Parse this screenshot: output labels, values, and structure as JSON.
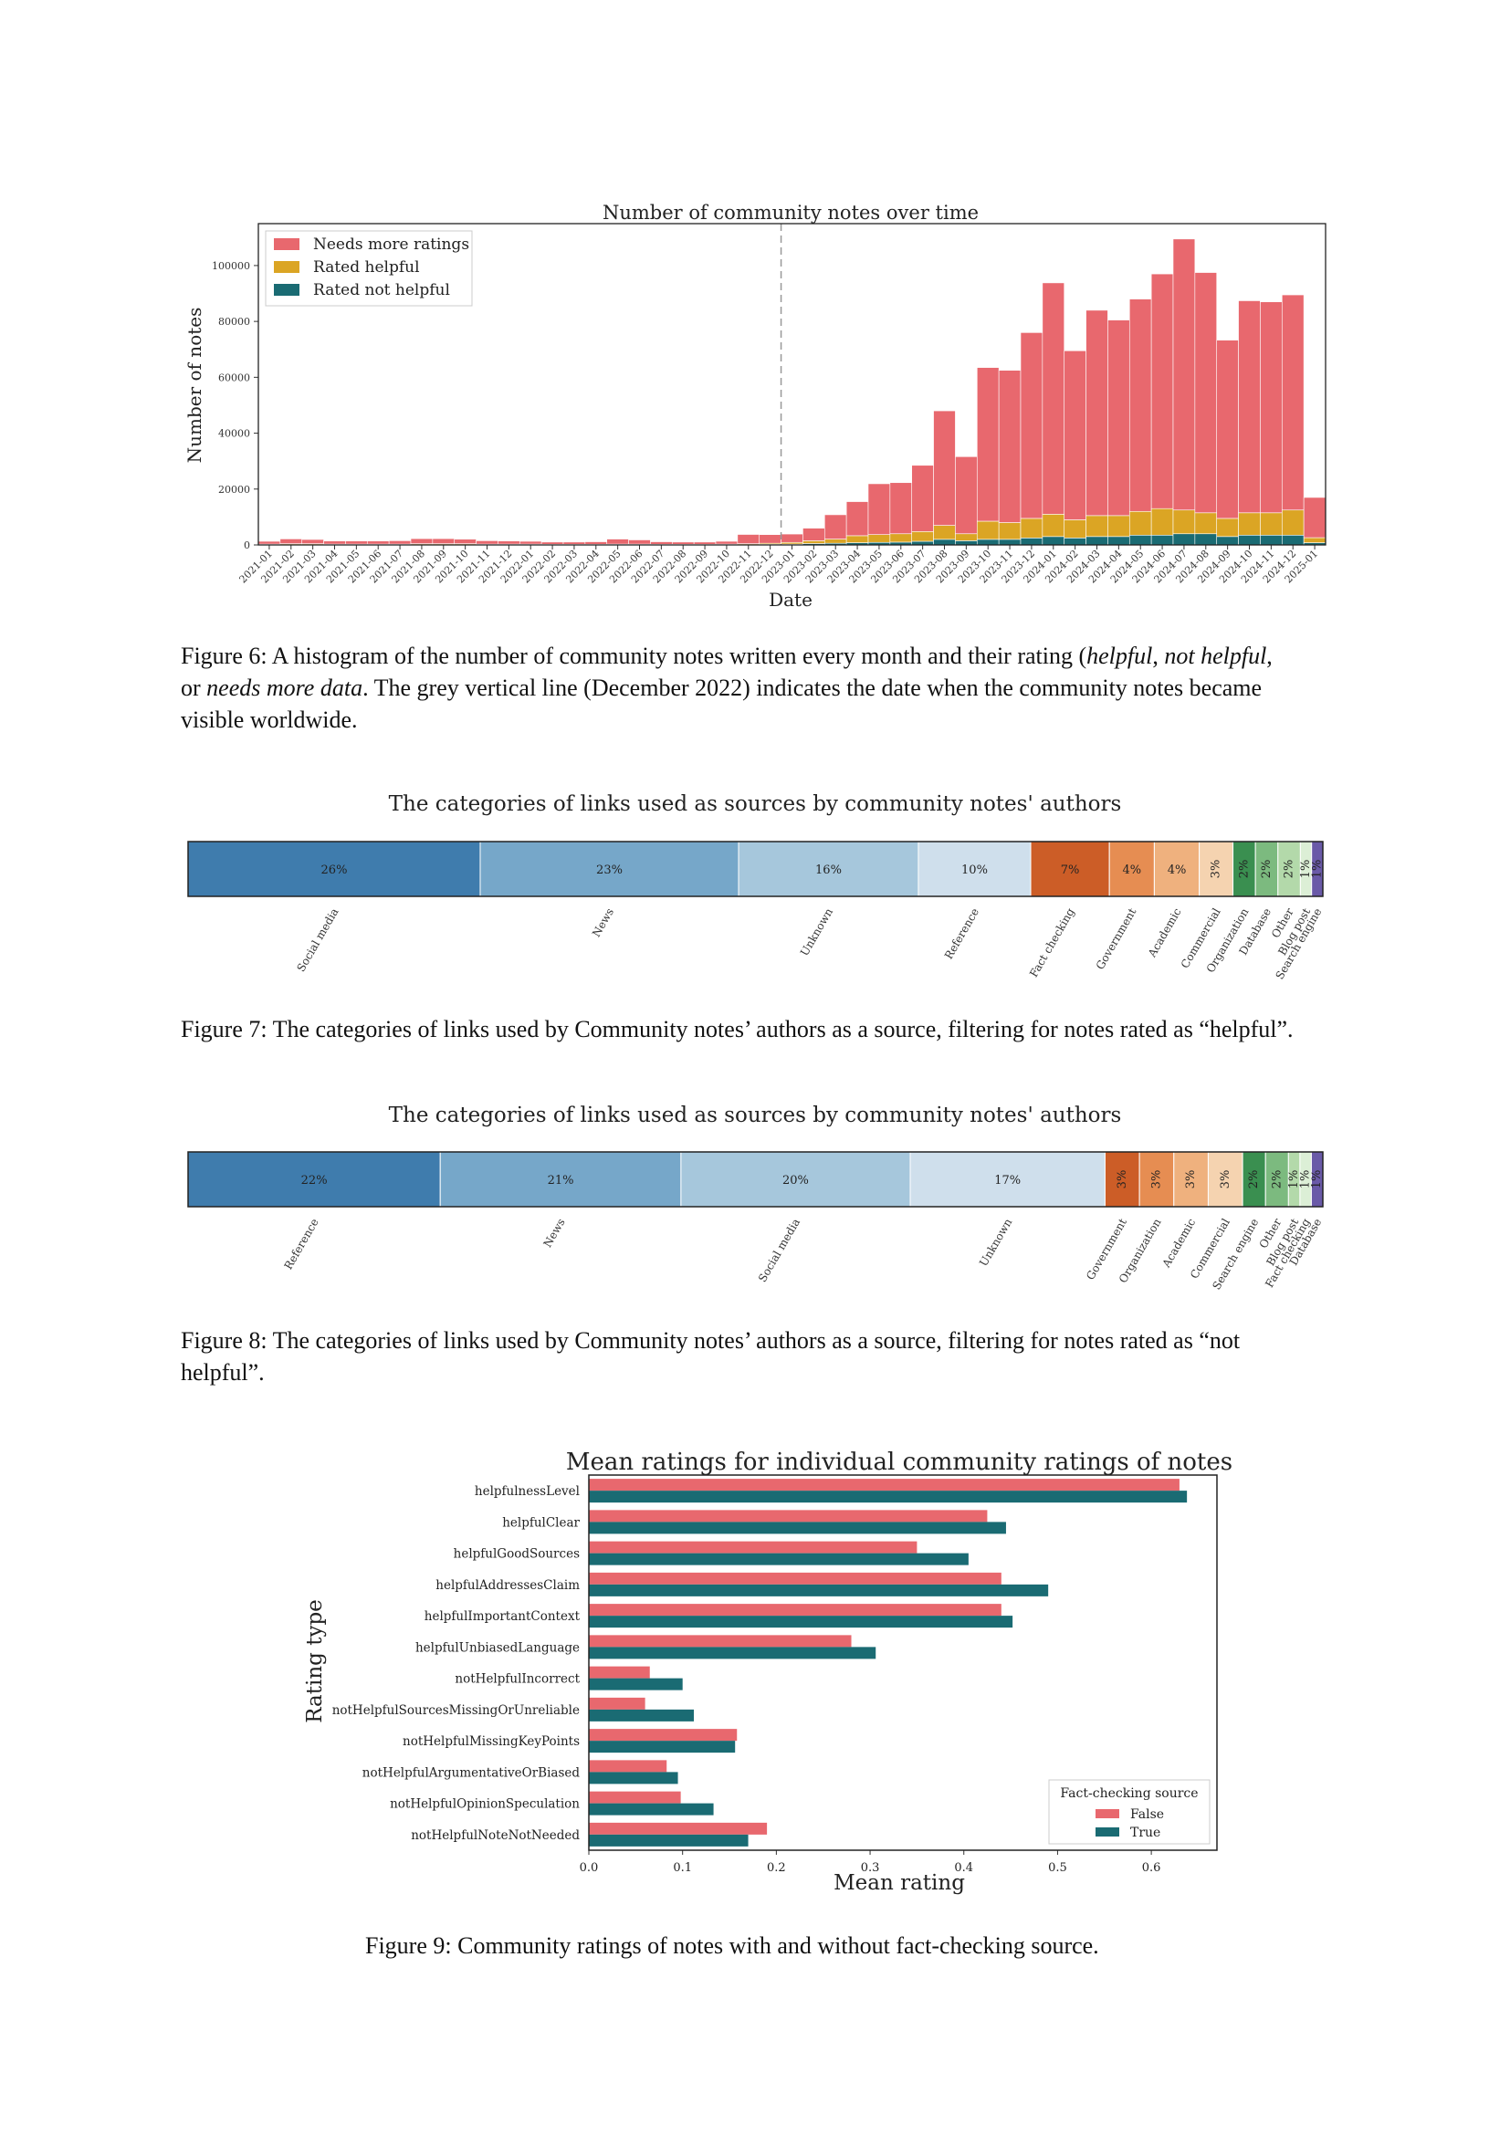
{
  "colors": {
    "needs_more": "#e8686e",
    "helpful": "#dba524",
    "not_helpful": "#1a6b73",
    "cat_palette": [
      "#3f7cad",
      "#76a7c9",
      "#a6c7dc",
      "#cfdfec",
      "#cc5d27",
      "#e68d52",
      "#efb17e",
      "#f5d3b0",
      "#3a8f50",
      "#7cba7f",
      "#b3d9aa",
      "#dcefd6",
      "#6a5aa8"
    ]
  },
  "figure6": {
    "chart_data": {
      "type": "bar",
      "stacked": true,
      "title": "Number of community notes over time",
      "xlabel": "Date",
      "ylabel": "Number of notes",
      "ylim": [
        0,
        115000
      ],
      "yticks": [
        0,
        20000,
        40000,
        60000,
        80000,
        100000
      ],
      "legend_position": "top-left",
      "vline_category": "2022-12",
      "categories": [
        "2021-01",
        "2021-02",
        "2021-03",
        "2021-04",
        "2021-05",
        "2021-06",
        "2021-07",
        "2021-08",
        "2021-09",
        "2021-10",
        "2021-11",
        "2021-12",
        "2022-01",
        "2022-02",
        "2022-03",
        "2022-04",
        "2022-05",
        "2022-06",
        "2022-07",
        "2022-08",
        "2022-09",
        "2022-10",
        "2022-11",
        "2022-12",
        "2023-01",
        "2023-02",
        "2023-03",
        "2023-04",
        "2023-05",
        "2023-06",
        "2023-07",
        "2023-08",
        "2023-09",
        "2023-10",
        "2023-11",
        "2023-12",
        "2024-01",
        "2024-02",
        "2024-03",
        "2024-04",
        "2024-05",
        "2024-06",
        "2024-07",
        "2024-08",
        "2024-09",
        "2024-10",
        "2024-11",
        "2024-12",
        "2025-01"
      ],
      "series": [
        {
          "name": "Rated not helpful",
          "values": [
            100,
            150,
            150,
            100,
            100,
            100,
            100,
            150,
            150,
            150,
            100,
            100,
            100,
            80,
            80,
            80,
            100,
            100,
            80,
            80,
            80,
            100,
            150,
            200,
            300,
            500,
            600,
            800,
            900,
            1000,
            1300,
            2000,
            1500,
            2000,
            2000,
            2500,
            3000,
            2500,
            3000,
            3000,
            3500,
            3500,
            4000,
            4000,
            3000,
            3500,
            3500,
            3500,
            800
          ]
        },
        {
          "name": "Rated helpful",
          "values": [
            200,
            300,
            300,
            200,
            200,
            200,
            200,
            300,
            300,
            300,
            200,
            200,
            200,
            150,
            150,
            150,
            200,
            200,
            150,
            150,
            150,
            200,
            300,
            400,
            600,
            1000,
            1500,
            2500,
            2800,
            3000,
            3500,
            5000,
            2500,
            6500,
            6000,
            7000,
            8000,
            6500,
            7500,
            7500,
            8500,
            9500,
            8500,
            7500,
            6500,
            8000,
            8000,
            9000,
            1800
          ]
        },
        {
          "name": "Needs more ratings",
          "values": [
            1000,
            1700,
            1500,
            1100,
            1100,
            1100,
            1200,
            1800,
            1800,
            1600,
            1200,
            1100,
            1000,
            800,
            800,
            900,
            1800,
            1500,
            900,
            800,
            800,
            1000,
            3300,
            3100,
            3000,
            4500,
            8700,
            12200,
            18200,
            18300,
            23700,
            41000,
            27600,
            55000,
            54500,
            66500,
            82800,
            60500,
            73500,
            70000,
            76000,
            84000,
            97000,
            86000,
            63800,
            75900,
            75500,
            77000,
            14400
          ]
        }
      ]
    },
    "caption": {
      "p1": "Figure 6: A histogram of the number of community notes written every month and their rating (",
      "i1": "helpful",
      "p2": ", ",
      "i2": "not helpful",
      "p3": ",",
      "p4": "or ",
      "i3": "needs more data",
      "p5": ". The grey vertical line (December 2022) indicates the date when the community notes became",
      "p6": "visible worldwide."
    }
  },
  "figure7": {
    "chart_data": {
      "type": "bar",
      "stacked": true,
      "orientation": "horizontal",
      "title": "The categories of links used as sources by community notes' authors",
      "categories": [
        "Social media",
        "News",
        "Unknown",
        "Reference",
        "Fact checking",
        "Government",
        "Academic",
        "Commercial",
        "Organization",
        "Database",
        "Other",
        "Blog post",
        "Search engine"
      ],
      "values": [
        26,
        23,
        16,
        10,
        7,
        4,
        4,
        3,
        2,
        2,
        2,
        1,
        1
      ],
      "labels": [
        "26%",
        "23%",
        "16%",
        "10%",
        "7%",
        "4%",
        "4%",
        "3%",
        "2%",
        "2%",
        "2%",
        "1%",
        "1%"
      ]
    },
    "caption": "Figure 7: The categories of links used by Community notes’ authors as a source, filtering for notes rated as “helpful”."
  },
  "figure8": {
    "chart_data": {
      "type": "bar",
      "stacked": true,
      "orientation": "horizontal",
      "title": "The categories of links used as sources by community notes' authors",
      "categories": [
        "Reference",
        "News",
        "Social media",
        "Unknown",
        "Government",
        "Organization",
        "Academic",
        "Commercial",
        "Search engine",
        "Other",
        "Blog post",
        "Fact checking",
        "Database"
      ],
      "values": [
        22,
        21,
        20,
        17,
        3,
        3,
        3,
        3,
        2,
        2,
        1,
        1,
        1
      ],
      "labels": [
        "22%",
        "21%",
        "20%",
        "17%",
        "3%",
        "3%",
        "3%",
        "3%",
        "2%",
        "2%",
        "1%",
        "1%",
        "1%"
      ]
    },
    "caption_l1": "Figure 8: The categories of links used by Community notes’ authors as a source, filtering for notes rated as “not",
    "caption_l2": "helpful”."
  },
  "figure9": {
    "chart_data": {
      "type": "bar",
      "orientation": "horizontal",
      "title": "Mean ratings for individual community ratings of notes",
      "xlabel": "Mean rating",
      "ylabel": "Rating type",
      "xlim": [
        0,
        0.67
      ],
      "xticks": [
        0.0,
        0.1,
        0.2,
        0.3,
        0.4,
        0.5,
        0.6
      ],
      "legend_title": "Fact-checking source",
      "legend_position": "lower-right",
      "categories": [
        "helpfulnessLevel",
        "helpfulClear",
        "helpfulGoodSources",
        "helpfulAddressesClaim",
        "helpfulImportantContext",
        "helpfulUnbiasedLanguage",
        "notHelpfulIncorrect",
        "notHelpfulSourcesMissingOrUnreliable",
        "notHelpfulMissingKeyPoints",
        "notHelpfulArgumentativeOrBiased",
        "notHelpfulOpinionSpeculation",
        "notHelpfulNoteNotNeeded"
      ],
      "series": [
        {
          "name": "False",
          "values": [
            0.63,
            0.425,
            0.35,
            0.44,
            0.44,
            0.28,
            0.065,
            0.06,
            0.158,
            0.083,
            0.098,
            0.19
          ]
        },
        {
          "name": "True",
          "values": [
            0.638,
            0.445,
            0.405,
            0.49,
            0.452,
            0.306,
            0.1,
            0.112,
            0.156,
            0.095,
            0.133,
            0.17
          ]
        }
      ]
    },
    "caption": "Figure 9: Community ratings of notes with and without fact-checking source."
  }
}
